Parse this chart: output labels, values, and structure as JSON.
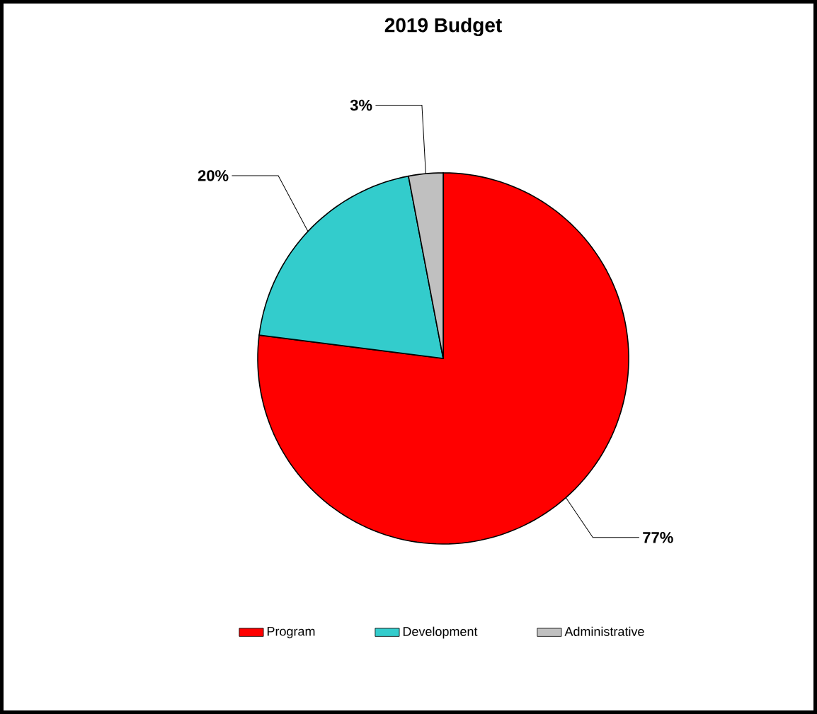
{
  "chart_data": {
    "type": "pie",
    "title": "2019 Budget",
    "categories": [
      "Program",
      "Development",
      "Administrative"
    ],
    "values": [
      77,
      20,
      3
    ],
    "colors": [
      "#ff0000",
      "#33cccc",
      "#c0c0c0"
    ],
    "value_labels": [
      "77%",
      "20%",
      "3%"
    ],
    "legend": "bottom"
  }
}
